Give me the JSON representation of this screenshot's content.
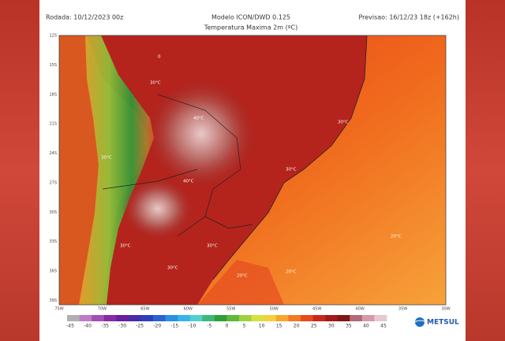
{
  "header": {
    "run": "Rodada: 10/12/2023 00z",
    "model": "Modelo ICON/DWD 0.125",
    "variable": "Temperatura Maxima 2m (ºC)",
    "forecast": "Previsao: 16/12/23 18z (+162h)"
  },
  "map": {
    "lat_labels": [
      "12S",
      "15S",
      "18S",
      "21S",
      "24S",
      "27S",
      "30S",
      "33S",
      "36S",
      "39S"
    ],
    "lon_labels": [
      "75W",
      "70W",
      "65W",
      "60W",
      "55W",
      "50W",
      "45W",
      "40W",
      "35W",
      "30W"
    ],
    "contour_labels": [
      "30°C",
      "30°C",
      "40°C",
      "40°C",
      "30°C",
      "30°C",
      "30°C",
      "20°C",
      "20°C",
      "20°C",
      "30°C",
      "30°C",
      "0"
    ]
  },
  "colorbar": {
    "ticks": [
      -45,
      -40,
      -35,
      -30,
      -25,
      -20,
      -15,
      -10,
      -5,
      0,
      5,
      10,
      15,
      20,
      25,
      30,
      35,
      40,
      45
    ]
  },
  "logo": "METSUL"
}
